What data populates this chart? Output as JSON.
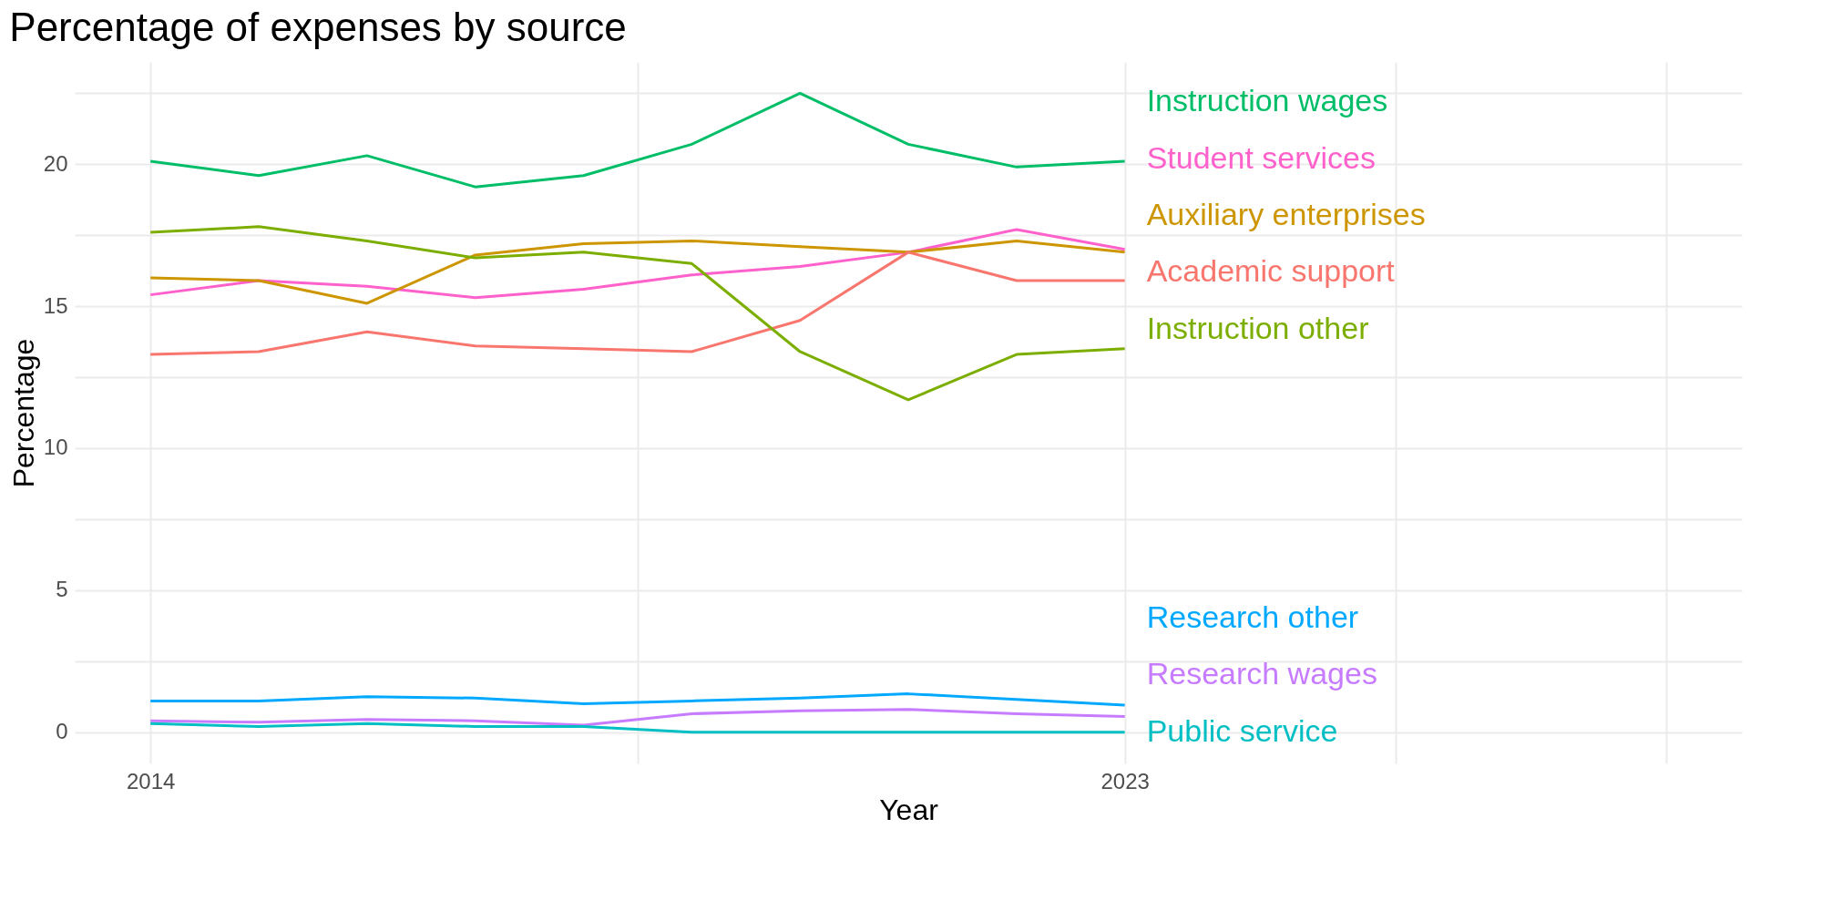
{
  "chart_data": {
    "type": "line",
    "title": "Percentage of expenses by source",
    "xlabel": "Year",
    "ylabel": "Percentage",
    "x": [
      2014,
      2015,
      2016,
      2017,
      2018,
      2019,
      2020,
      2021,
      2022,
      2023
    ],
    "series": [
      {
        "name": "Instruction wages",
        "color": "#00be67",
        "values": [
          20.1,
          19.6,
          20.3,
          19.2,
          19.6,
          20.7,
          22.5,
          20.7,
          19.9,
          20.1
        ]
      },
      {
        "name": "Student services",
        "color": "#ff61cc",
        "values": [
          15.4,
          15.9,
          15.7,
          15.3,
          15.6,
          16.1,
          16.4,
          16.9,
          17.7,
          17.0
        ]
      },
      {
        "name": "Auxiliary enterprises",
        "color": "#cd9600",
        "values": [
          16.0,
          15.9,
          15.1,
          16.8,
          17.2,
          17.3,
          17.1,
          16.9,
          17.3,
          16.9
        ]
      },
      {
        "name": "Academic support",
        "color": "#f8766d",
        "values": [
          13.3,
          13.4,
          14.1,
          13.6,
          13.5,
          13.4,
          14.5,
          16.9,
          15.9,
          15.9
        ]
      },
      {
        "name": "Instruction other",
        "color": "#7cae00",
        "values": [
          17.6,
          17.8,
          17.3,
          16.7,
          16.9,
          16.5,
          13.4,
          11.7,
          13.3,
          13.5
        ]
      },
      {
        "name": "Research other",
        "color": "#00a9ff",
        "values": [
          1.1,
          1.1,
          1.25,
          1.2,
          1.0,
          1.1,
          1.2,
          1.35,
          1.15,
          0.95
        ]
      },
      {
        "name": "Research wages",
        "color": "#c77cff",
        "values": [
          0.4,
          0.35,
          0.45,
          0.4,
          0.25,
          0.65,
          0.75,
          0.8,
          0.65,
          0.55
        ]
      },
      {
        "name": "Public service",
        "color": "#00bfc4",
        "values": [
          0.3,
          0.2,
          0.3,
          0.2,
          0.2,
          0,
          0,
          0,
          0,
          0
        ]
      }
    ],
    "xlim": [
      2013.3,
      2028.7
    ],
    "xticks": [
      2014,
      {
        "value": 2018.5,
        "label": null
      },
      2023,
      {
        "value": 2025.5,
        "label": null
      },
      {
        "value": 2028,
        "label": null
      }
    ],
    "ylim": [
      -1.1,
      23.6
    ],
    "yticks": [
      0,
      {
        "value": 2.5,
        "label": null
      },
      5,
      {
        "value": 7.5,
        "label": null
      },
      10,
      {
        "value": 12.5,
        "label": null
      },
      15,
      {
        "value": 17.5,
        "label": null
      },
      20,
      {
        "value": 22.5,
        "label": null
      }
    ],
    "grid": true,
    "legend": false,
    "line_style": "solid",
    "marker": "none"
  }
}
